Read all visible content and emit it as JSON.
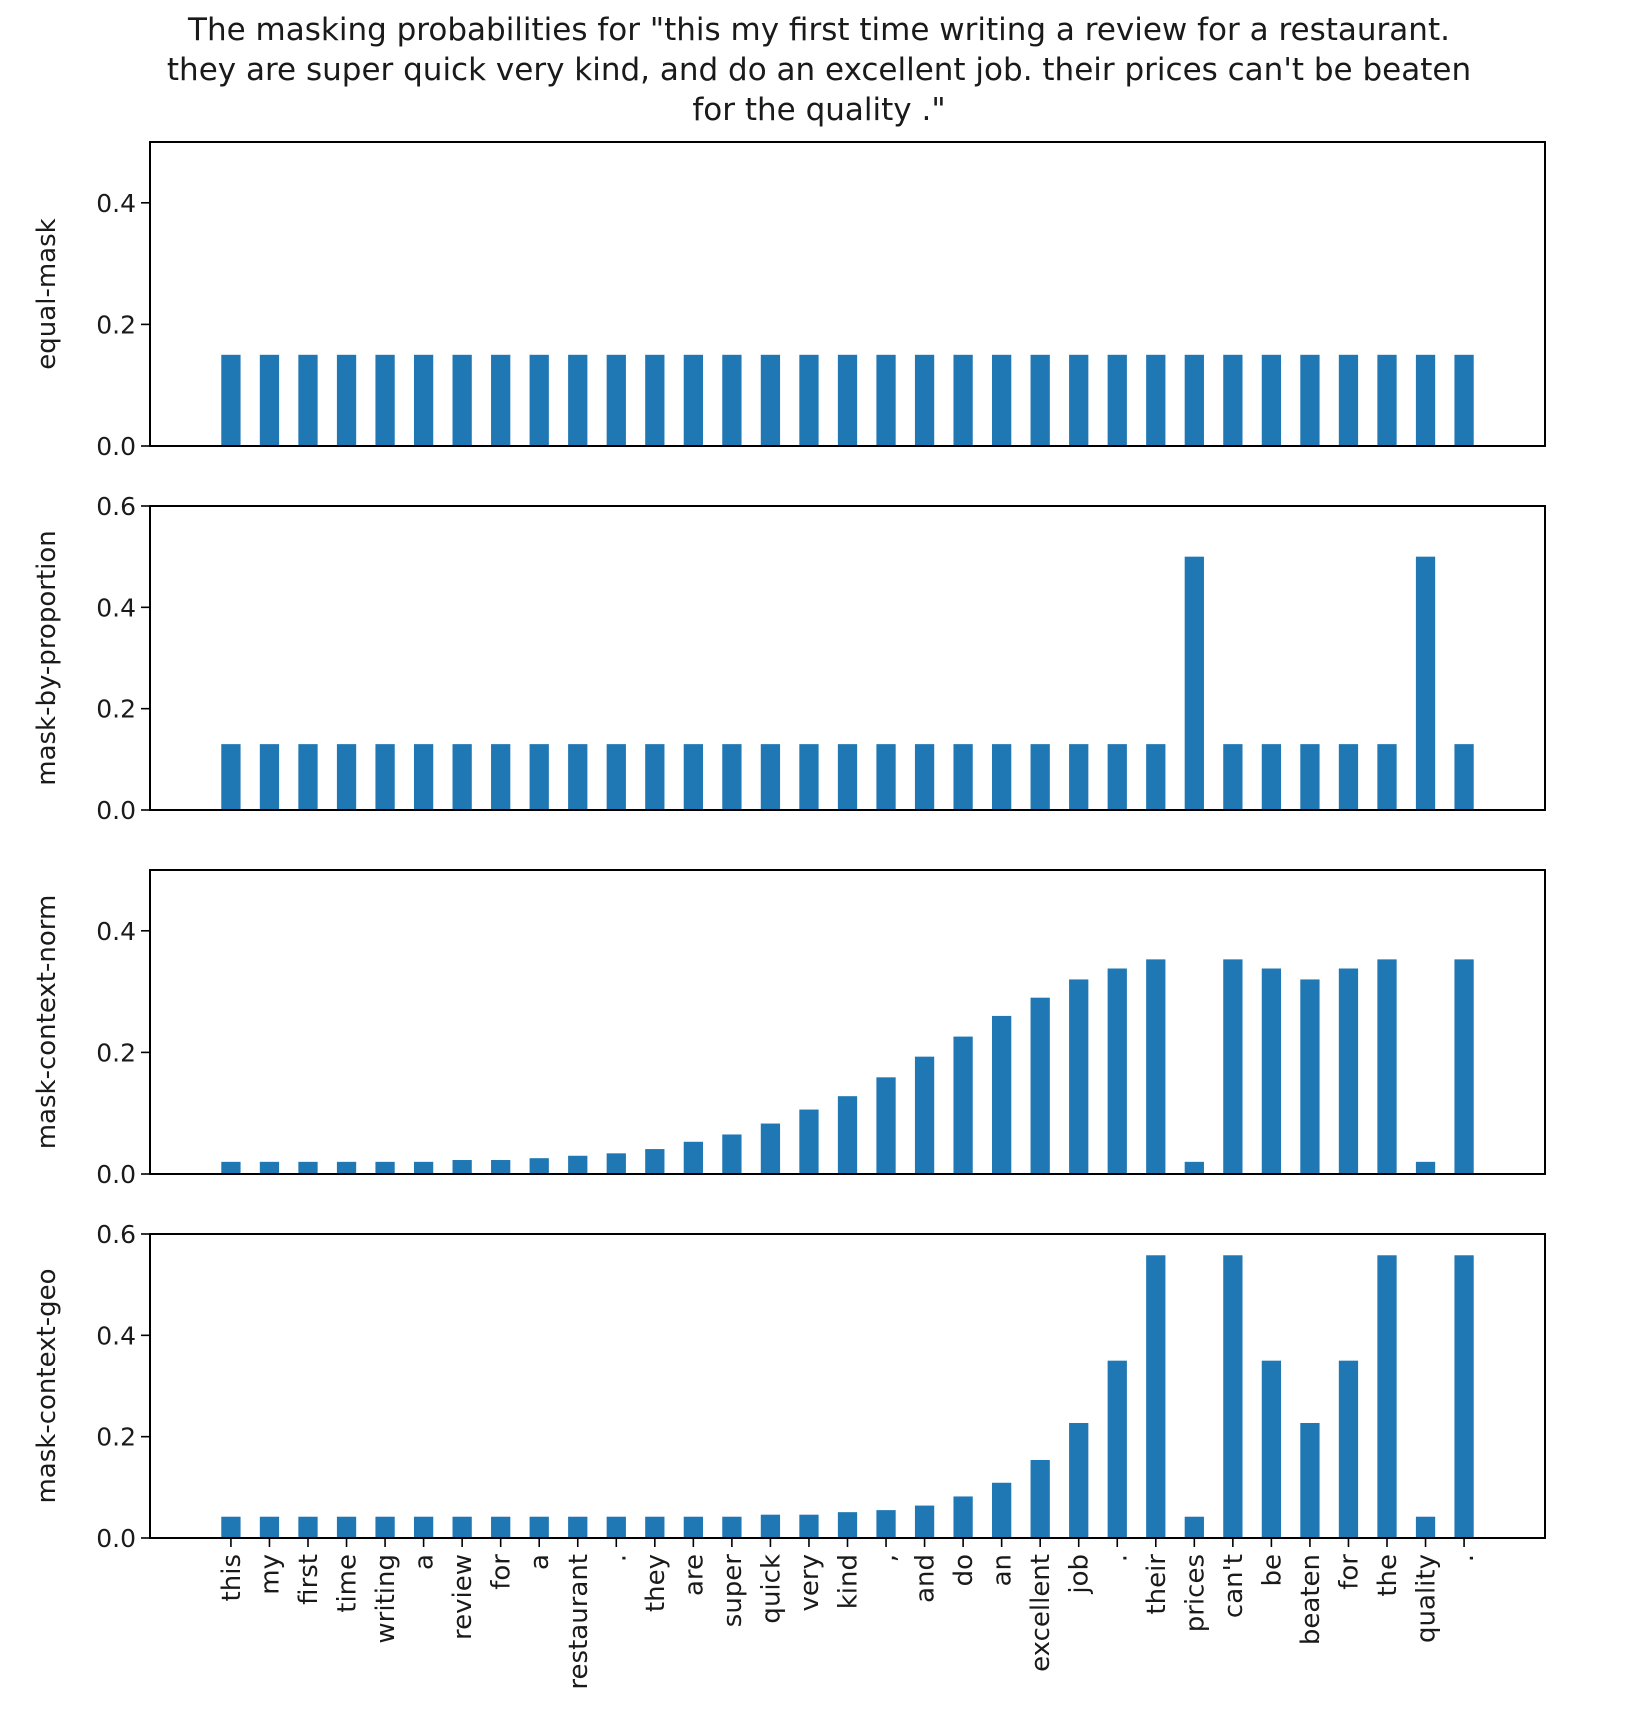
{
  "chart_data": {
    "type": "bar",
    "title": "The masking probabilities for \"this my first time writing a review for a restaurant.\nthey are super quick very kind, and do an excellent job. their prices can't be beaten\nfor the quality .\"",
    "title_lines": [
      "The masking probabilities for \"this my first time writing a review for a restaurant.",
      "they are super quick very kind, and do an excellent job. their prices can't be beaten",
      "for the quality .\""
    ],
    "bar_color": "#1f77b4",
    "grid": false,
    "categories": [
      "this",
      "my",
      "first",
      "time",
      "writing",
      "a",
      "review",
      "for",
      "a",
      "restaurant",
      ".",
      "they",
      "are",
      "super",
      "quick",
      "very",
      "kind",
      ",",
      "and",
      "do",
      "an",
      "excellent",
      "job",
      ".",
      "their",
      "prices",
      "can't",
      "be",
      "beaten",
      "for",
      "the",
      "quality",
      "."
    ],
    "panels": [
      {
        "ylabel": "equal-mask",
        "ylim": [
          0,
          0.5
        ],
        "yticks": [
          "0.0",
          "0.2",
          "0.4"
        ],
        "values": [
          0.15,
          0.15,
          0.15,
          0.15,
          0.15,
          0.15,
          0.15,
          0.15,
          0.15,
          0.15,
          0.15,
          0.15,
          0.15,
          0.15,
          0.15,
          0.15,
          0.15,
          0.15,
          0.15,
          0.15,
          0.15,
          0.15,
          0.15,
          0.15,
          0.15,
          0.15,
          0.15,
          0.15,
          0.15,
          0.15,
          0.15,
          0.15,
          0.15
        ]
      },
      {
        "ylabel": "mask-by-proportion",
        "ylim": [
          0,
          0.6
        ],
        "yticks": [
          "0.0",
          "0.2",
          "0.4",
          "0.6"
        ],
        "values": [
          0.13,
          0.13,
          0.13,
          0.13,
          0.13,
          0.13,
          0.13,
          0.13,
          0.13,
          0.13,
          0.13,
          0.13,
          0.13,
          0.13,
          0.13,
          0.13,
          0.13,
          0.13,
          0.13,
          0.13,
          0.13,
          0.13,
          0.13,
          0.13,
          0.13,
          0.5,
          0.13,
          0.13,
          0.13,
          0.13,
          0.13,
          0.5,
          0.13
        ]
      },
      {
        "ylabel": "mask-context-norm",
        "ylim": [
          0,
          0.5
        ],
        "yticks": [
          "0.0",
          "0.2",
          "0.4"
        ],
        "values": [
          0.02,
          0.02,
          0.02,
          0.02,
          0.02,
          0.02,
          0.023,
          0.023,
          0.026,
          0.03,
          0.034,
          0.041,
          0.053,
          0.065,
          0.083,
          0.106,
          0.128,
          0.159,
          0.193,
          0.226,
          0.26,
          0.29,
          0.32,
          0.338,
          0.353,
          0.02,
          0.353,
          0.338,
          0.32,
          0.338,
          0.353,
          0.02,
          0.353
        ]
      },
      {
        "ylabel": "mask-context-geo",
        "ylim": [
          0,
          0.6
        ],
        "yticks": [
          "0.0",
          "0.2",
          "0.4",
          "0.6"
        ],
        "values": [
          0.042,
          0.042,
          0.042,
          0.042,
          0.042,
          0.042,
          0.042,
          0.042,
          0.042,
          0.042,
          0.042,
          0.042,
          0.042,
          0.042,
          0.046,
          0.046,
          0.051,
          0.055,
          0.064,
          0.082,
          0.109,
          0.154,
          0.227,
          0.35,
          0.558,
          0.042,
          0.558,
          0.35,
          0.227,
          0.35,
          0.558,
          0.042,
          0.558
        ]
      }
    ]
  }
}
